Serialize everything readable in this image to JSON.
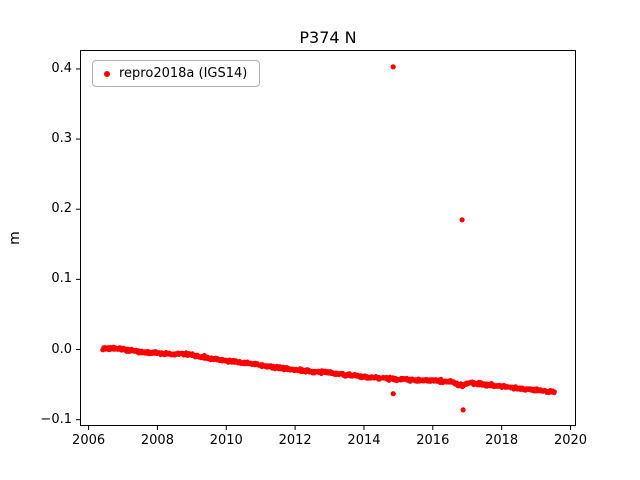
{
  "title": "P374 N",
  "axes": {
    "ylabel": "m"
  },
  "legend": {
    "label": "repro2018a (IGS14)",
    "marker_color": "#ff0000"
  },
  "chart_data": {
    "type": "scatter",
    "title": "P374 N",
    "xlabel": "",
    "ylabel": "m",
    "xlim": [
      2005.75,
      2020.16
    ],
    "ylim": [
      -0.109,
      0.427
    ],
    "grid": false,
    "legend_position": "upper left",
    "xticks": [
      {
        "value": 2006,
        "label": "2006"
      },
      {
        "value": 2008,
        "label": "2008"
      },
      {
        "value": 2010,
        "label": "2010"
      },
      {
        "value": 2012,
        "label": "2012"
      },
      {
        "value": 2014,
        "label": "2014"
      },
      {
        "value": 2016,
        "label": "2016"
      },
      {
        "value": 2018,
        "label": "2018"
      },
      {
        "value": 2020,
        "label": "2020"
      }
    ],
    "yticks": [
      {
        "value": -0.1,
        "label": "−0.1"
      },
      {
        "value": 0.0,
        "label": "0.0"
      },
      {
        "value": 0.1,
        "label": "0.1"
      },
      {
        "value": 0.2,
        "label": "0.2"
      },
      {
        "value": 0.3,
        "label": "0.3"
      },
      {
        "value": 0.4,
        "label": "0.4"
      }
    ],
    "series": [
      {
        "name": "repro2018a (IGS14)",
        "color": "#ff0000",
        "marker": "dot",
        "marker_radius_px": 2.2,
        "x_start": 2006.4,
        "x_end": 2019.55,
        "sample_step_years": 0.012,
        "noise_amplitude": 0.0035,
        "trend_anchors": [
          [
            2006.4,
            0.001
          ],
          [
            2006.7,
            0.002
          ],
          [
            2007.0,
            0.0
          ],
          [
            2007.3,
            -0.002
          ],
          [
            2007.6,
            -0.004
          ],
          [
            2008.0,
            -0.005
          ],
          [
            2008.4,
            -0.007
          ],
          [
            2008.8,
            -0.006
          ],
          [
            2009.2,
            -0.01
          ],
          [
            2009.6,
            -0.013
          ],
          [
            2010.0,
            -0.016
          ],
          [
            2010.5,
            -0.019
          ],
          [
            2011.0,
            -0.022
          ],
          [
            2011.5,
            -0.026
          ],
          [
            2012.0,
            -0.029
          ],
          [
            2012.5,
            -0.031
          ],
          [
            2013.0,
            -0.033
          ],
          [
            2013.5,
            -0.036
          ],
          [
            2014.0,
            -0.039
          ],
          [
            2014.5,
            -0.041
          ],
          [
            2015.0,
            -0.042
          ],
          [
            2015.5,
            -0.044
          ],
          [
            2016.0,
            -0.044
          ],
          [
            2016.5,
            -0.046
          ],
          [
            2016.85,
            -0.051
          ],
          [
            2017.1,
            -0.047
          ],
          [
            2017.5,
            -0.05
          ],
          [
            2018.0,
            -0.052
          ],
          [
            2018.5,
            -0.055
          ],
          [
            2019.0,
            -0.058
          ],
          [
            2019.55,
            -0.061
          ]
        ],
        "outliers": [
          [
            2014.85,
            0.403
          ],
          [
            2014.85,
            -0.063
          ],
          [
            2016.85,
            0.185
          ],
          [
            2016.88,
            -0.086
          ]
        ]
      }
    ]
  }
}
